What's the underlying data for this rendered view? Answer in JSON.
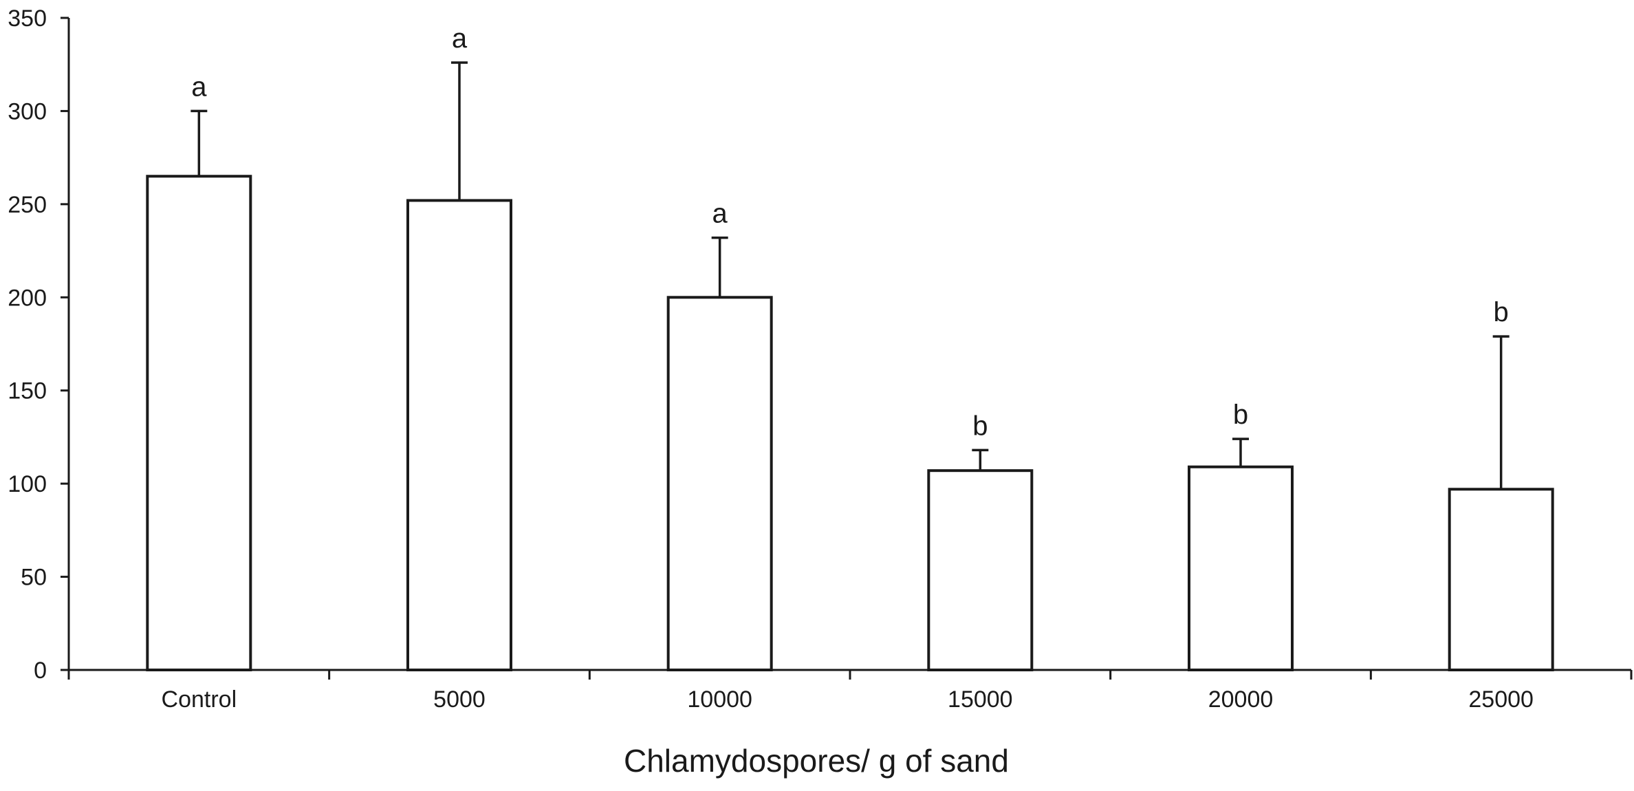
{
  "chart_data": {
    "type": "bar",
    "title": "",
    "xlabel": "Chlamydospores/ g of sand",
    "ylabel": "",
    "ylim": [
      0,
      350
    ],
    "yticks": [
      0,
      50,
      100,
      150,
      200,
      250,
      300,
      350
    ],
    "categories": [
      "Control",
      "5000",
      "10000",
      "15000",
      "20000",
      "25000"
    ],
    "values": [
      265,
      252,
      200,
      107,
      109,
      97
    ],
    "error_upper": [
      300,
      326,
      232,
      118,
      124,
      179
    ],
    "significance_letters": [
      "a",
      "a",
      "a",
      "b",
      "b",
      "b"
    ],
    "grid": false,
    "legend": "none",
    "colors": {
      "bar_fill": "#ffffff",
      "bar_stroke": "#1a1a1a",
      "axis": "#1a1a1a"
    }
  }
}
